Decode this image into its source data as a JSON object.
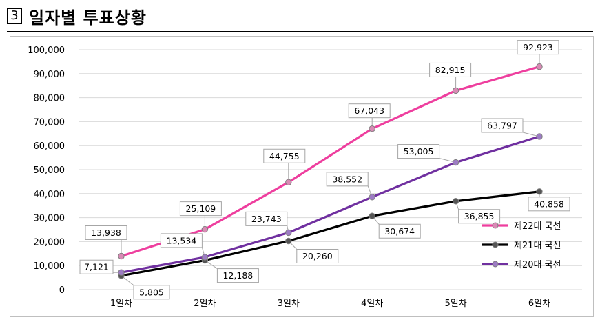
{
  "header": {
    "number": "3",
    "title": "일자별 투표상황"
  },
  "chart_data": {
    "type": "line",
    "categories": [
      "1일차",
      "2일차",
      "3일차",
      "4일차",
      "5일차",
      "6일차"
    ],
    "ylim": [
      0,
      100000
    ],
    "yticks": [
      0,
      10000,
      20000,
      30000,
      40000,
      50000,
      60000,
      70000,
      80000,
      90000,
      100000
    ],
    "ytick_labels": [
      "0",
      "10,000",
      "20,000",
      "30,000",
      "40,000",
      "50,000",
      "60,000",
      "70,000",
      "80,000",
      "90,000",
      "100,000"
    ],
    "grid": true,
    "legend_position": "right",
    "series": [
      {
        "name": "제22대 국선",
        "color": "#ee3e9e",
        "marker": "#d98ab5",
        "values": [
          13938,
          25109,
          44755,
          67043,
          82915,
          92923
        ],
        "labels": [
          "13,938",
          "25,109",
          "44,755",
          "67,043",
          "82,915",
          "92,923"
        ]
      },
      {
        "name": "제21대 국선",
        "color": "#000000",
        "marker": "#555555",
        "values": [
          5805,
          12188,
          20260,
          30674,
          36855,
          40858
        ],
        "labels": [
          "5,805",
          "12,188",
          "20,260",
          "30,674",
          "36,855",
          "40,858"
        ]
      },
      {
        "name": "제20대 국선",
        "color": "#7030a0",
        "marker": "#9d7cc4",
        "values": [
          7121,
          13534,
          23743,
          38552,
          53005,
          63797
        ],
        "labels": [
          "7,121",
          "13,534",
          "23,743",
          "38,552",
          "53,005",
          "63,797"
        ]
      }
    ]
  }
}
